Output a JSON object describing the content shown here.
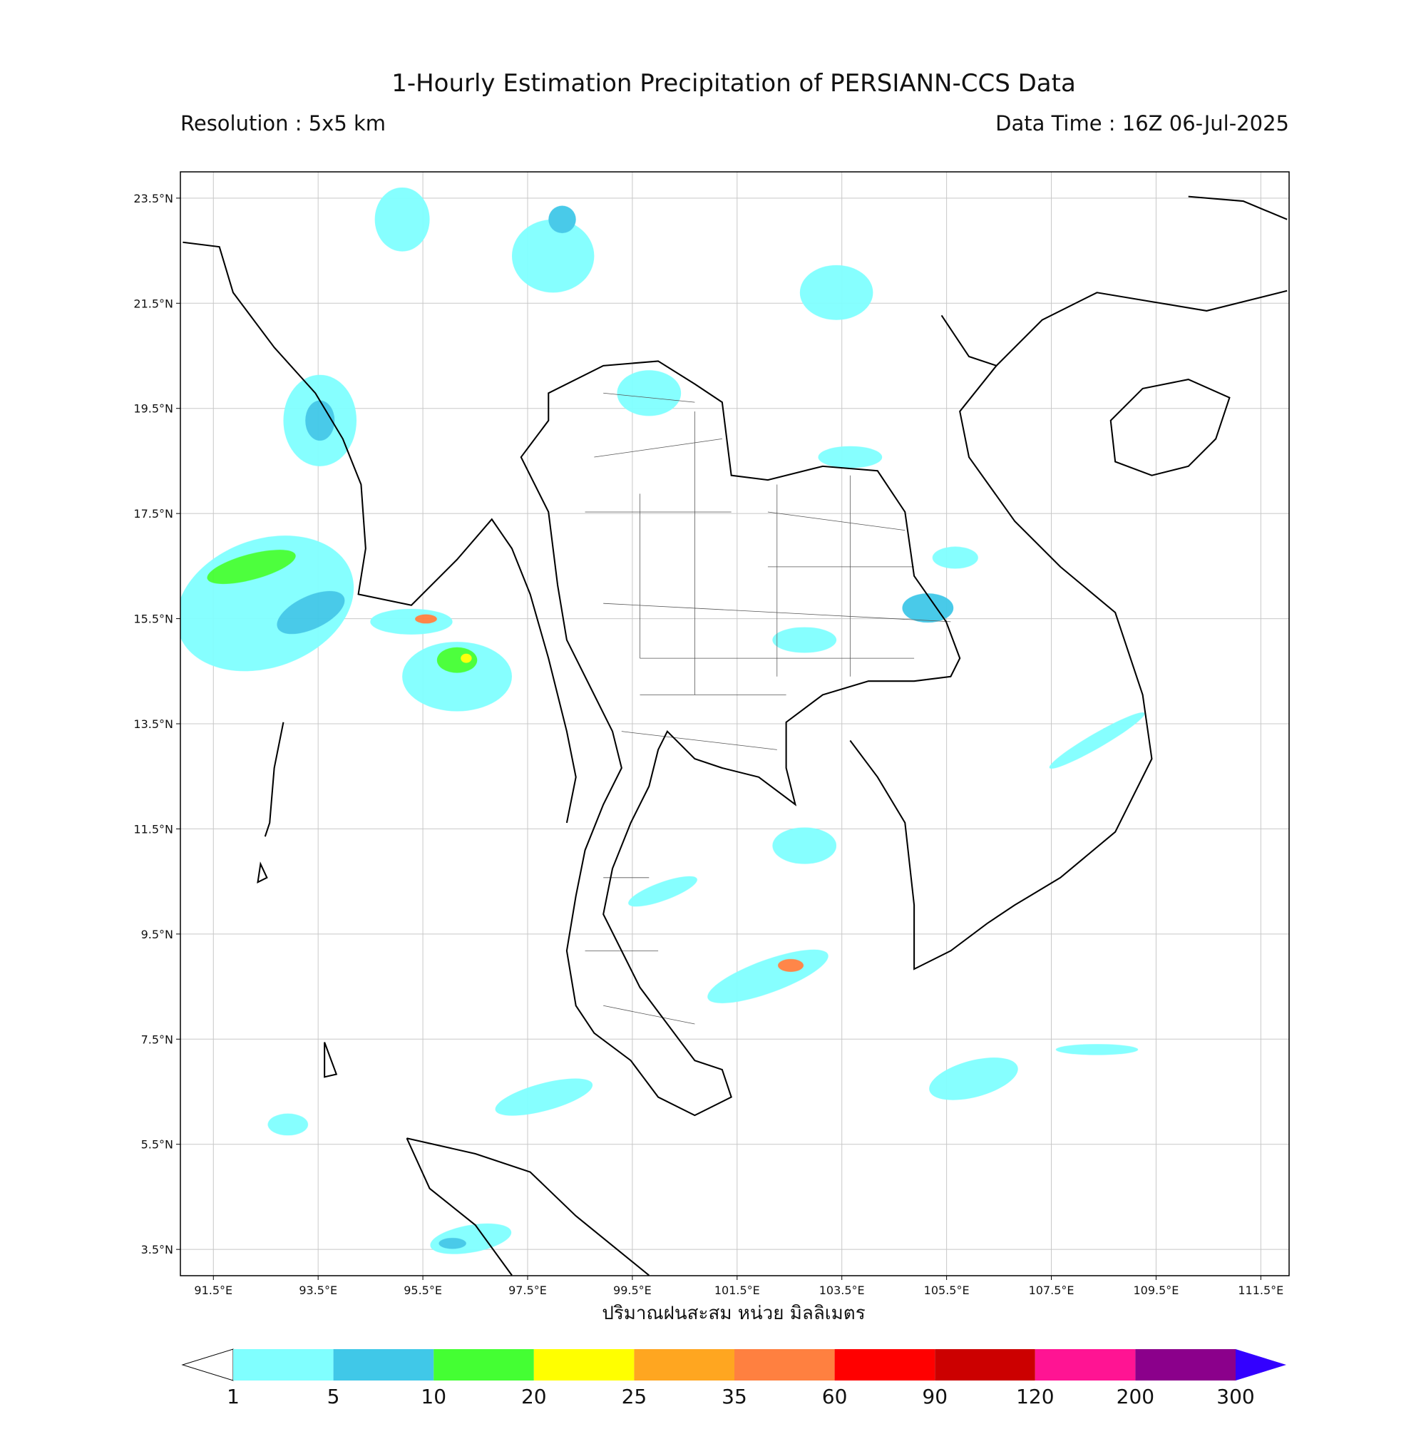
{
  "chart_data": {
    "type": "map",
    "title": "1-Hourly Estimation Precipitation of PERSIANN-CCS Data",
    "subtitle_left": "Resolution : 5x5 km",
    "subtitle_right": "Data Time : 16Z 06-Jul-2025",
    "xlabel": "ปริมาณฝนสะสม หน่วย มิลลิเมตร",
    "xlim": [
      90.87,
      112.04
    ],
    "ylim": [
      3.0,
      24.0
    ],
    "grid": true,
    "xticks": [
      {
        "value": 91.5,
        "label": "91.5°E"
      },
      {
        "value": 93.5,
        "label": "93.5°E"
      },
      {
        "value": 95.5,
        "label": "95.5°E"
      },
      {
        "value": 97.5,
        "label": "97.5°E"
      },
      {
        "value": 99.5,
        "label": "99.5°E"
      },
      {
        "value": 101.5,
        "label": "101.5°E"
      },
      {
        "value": 103.5,
        "label": "103.5°E"
      },
      {
        "value": 105.5,
        "label": "105.5°E"
      },
      {
        "value": 107.5,
        "label": "107.5°E"
      },
      {
        "value": 109.5,
        "label": "109.5°E"
      },
      {
        "value": 111.5,
        "label": "111.5°E"
      }
    ],
    "yticks": [
      {
        "value": 3.5,
        "label": "3.5°N"
      },
      {
        "value": 5.5,
        "label": "5.5°N"
      },
      {
        "value": 7.5,
        "label": "7.5°N"
      },
      {
        "value": 9.5,
        "label": "9.5°N"
      },
      {
        "value": 11.5,
        "label": "11.5°N"
      },
      {
        "value": 13.5,
        "label": "13.5°N"
      },
      {
        "value": 15.5,
        "label": "15.5°N"
      },
      {
        "value": 17.5,
        "label": "17.5°N"
      },
      {
        "value": 19.5,
        "label": "19.5°N"
      },
      {
        "value": 21.5,
        "label": "21.5°N"
      },
      {
        "value": 23.5,
        "label": "23.5°N"
      }
    ],
    "colorbar": {
      "levels": [
        1,
        5,
        10,
        20,
        25,
        35,
        60,
        90,
        120,
        200,
        300
      ],
      "colors": [
        "#80ffff",
        "#40c8e8",
        "#44ff33",
        "#ffff00",
        "#ffa620",
        "#ff8040",
        "#ff0000",
        "#cc0000",
        "#ff1493",
        "#8b008b"
      ],
      "under_color": "#ffffff",
      "over_color": "#3300ff"
    }
  }
}
